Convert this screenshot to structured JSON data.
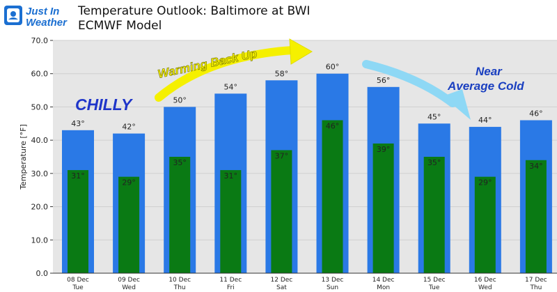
{
  "header": {
    "logo_line1": "Just In",
    "logo_line2": "Weather",
    "title_line1": "Temperature Outlook: Baltimore at BWI",
    "title_line2": "ECMWF Model"
  },
  "colors": {
    "high_bar": "#2a79e6",
    "low_bar": "#0a7a14",
    "grid": "#cfcfcf",
    "plot_bg": "#e6e6e6",
    "warming_arrow": "#f5f000",
    "cold_arrow": "#8ed8f5",
    "chilly_text": "#1f35c9",
    "cold_text": "#1a3fc0"
  },
  "annotations": {
    "chilly": "CHILLY",
    "warming": "Warming Back Up",
    "near_line1": "Near",
    "near_line2": "Average Cold"
  },
  "chart_data": {
    "type": "bar",
    "ylabel": "Temperature [°F]",
    "ylim": [
      0,
      70
    ],
    "yticks": [
      "0.0",
      "10.0",
      "20.0",
      "30.0",
      "40.0",
      "50.0",
      "60.0",
      "70.0"
    ],
    "grid": true,
    "categories": [
      [
        "08 Dec",
        "Tue"
      ],
      [
        "09 Dec",
        "Wed"
      ],
      [
        "10 Dec",
        "Thu"
      ],
      [
        "11 Dec",
        "Fri"
      ],
      [
        "12 Dec",
        "Sat"
      ],
      [
        "13 Dec",
        "Sun"
      ],
      [
        "14 Dec",
        "Mon"
      ],
      [
        "15 Dec",
        "Tue"
      ],
      [
        "16 Dec",
        "Wed"
      ],
      [
        "17 Dec",
        "Thu"
      ]
    ],
    "series": [
      {
        "values": [
          43,
          42,
          50,
          54,
          58,
          60,
          56,
          45,
          44,
          46
        ],
        "labels": [
          "43°",
          "42°",
          "50°",
          "54°",
          "58°",
          "60°",
          "56°",
          "45°",
          "44°",
          "46°"
        ]
      },
      {
        "values": [
          31,
          29,
          35,
          31,
          37,
          46,
          39,
          35,
          29,
          34
        ],
        "labels": [
          "31°",
          "29°",
          "35°",
          "31°",
          "37°",
          "46°",
          "39°",
          "35°",
          "29°",
          "34°"
        ]
      }
    ]
  }
}
